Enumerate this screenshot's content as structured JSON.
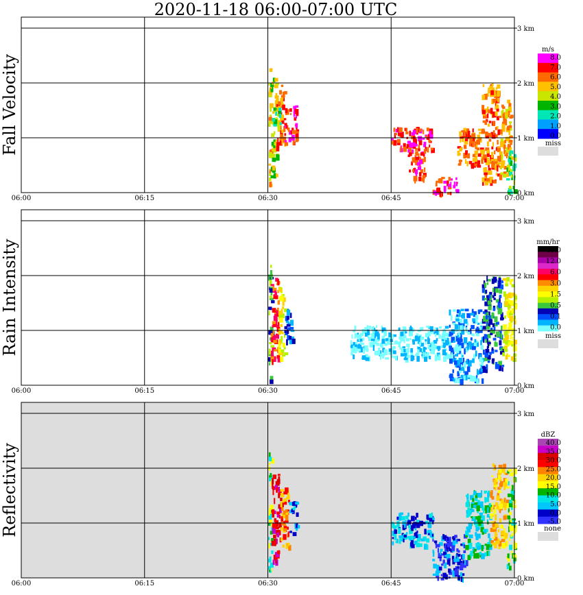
{
  "title": "2020-11-18   06:00-07:00 UTC",
  "time_ticks": [
    "06:00",
    "06:15",
    "06:30",
    "06:45",
    "07:00"
  ],
  "height_ticks": [
    "0 km",
    "1 km",
    "2 km",
    "3 km"
  ],
  "colors": {
    "missing": "#dddddd",
    "background": "#ffffff",
    "grid": "#000000"
  },
  "chart_data": [
    {
      "type": "heatmap",
      "title": "",
      "ylabel": "Fall Velocity",
      "xlabel": "",
      "x_range": [
        "06:00",
        "07:00"
      ],
      "y_range_km": [
        0,
        3.2
      ],
      "colorbar": {
        "unit": "m/s",
        "labels": [
          "8.0",
          "7.0",
          "6.0",
          "5.0",
          "4.0",
          "3.0",
          "2.0",
          "1.0",
          "0.0"
        ],
        "colors": [
          "#ff00ff",
          "#ff0000",
          "#ff6a00",
          "#ffc000",
          "#c8e600",
          "#00b400",
          "#00e6b4",
          "#00a0ff",
          "#0000ff"
        ],
        "missing_label": "miss"
      },
      "echoes": [
        {
          "t": [
            30.0,
            30.3
          ],
          "z": [
            0.1,
            2.3
          ],
          "v": 3
        },
        {
          "t": [
            30.3,
            31.0
          ],
          "z": [
            0.3,
            2.2
          ],
          "v": 4
        },
        {
          "t": [
            31.0,
            32.0
          ],
          "z": [
            0.8,
            2.0
          ],
          "v": 2
        },
        {
          "t": [
            32.0,
            33.5
          ],
          "z": [
            0.9,
            1.6
          ],
          "v": 1
        },
        {
          "t": [
            30.5,
            31.5
          ],
          "z": [
            1.2,
            1.6
          ],
          "v": 5
        },
        {
          "t": [
            45.0,
            50.0
          ],
          "z": [
            0.8,
            1.2
          ],
          "v": 1
        },
        {
          "t": [
            47.0,
            49.0
          ],
          "z": [
            0.2,
            0.8
          ],
          "v": 1
        },
        {
          "t": [
            50.0,
            53.0
          ],
          "z": [
            0.0,
            0.3
          ],
          "v": 1
        },
        {
          "t": [
            53.0,
            56.0
          ],
          "z": [
            0.5,
            1.2
          ],
          "v": 2
        },
        {
          "t": [
            56.0,
            58.0
          ],
          "z": [
            0.2,
            2.0
          ],
          "v": 2
        },
        {
          "t": [
            58.0,
            59.5
          ],
          "z": [
            0.3,
            1.7
          ],
          "v": 3
        },
        {
          "t": [
            59.0,
            60.0
          ],
          "z": [
            0.0,
            0.8
          ],
          "v": 5
        }
      ]
    },
    {
      "type": "heatmap",
      "title": "",
      "ylabel": "Rain Intensity",
      "xlabel": "",
      "x_range": [
        "06:00",
        "07:00"
      ],
      "y_range_km": [
        0,
        3.2
      ],
      "colorbar": {
        "unit": "mm/hr",
        "labels": [
          "48.0",
          "12.0",
          "6.0",
          "3.0",
          "1.5",
          "0.5",
          "0.1",
          "0.0"
        ],
        "colors": [
          "#000000",
          "#6e0046",
          "#aa00aa",
          "#dc28c8",
          "#ff0064",
          "#ff0000",
          "#ff8c00",
          "#ffd200",
          "#ffff00",
          "#b4f000",
          "#3cc83c",
          "#0000b4",
          "#0050ff",
          "#00b4ff",
          "#78ffff"
        ],
        "missing_label": "miss"
      },
      "echoes": [
        {
          "t": [
            30.0,
            30.4
          ],
          "z": [
            0.1,
            2.2
          ],
          "v": 10
        },
        {
          "t": [
            30.3,
            31.2
          ],
          "z": [
            0.4,
            2.0
          ],
          "v": 5
        },
        {
          "t": [
            31.2,
            32.0
          ],
          "z": [
            0.5,
            1.8
          ],
          "v": 8
        },
        {
          "t": [
            32.0,
            33.0
          ],
          "z": [
            0.8,
            1.4
          ],
          "v": 12
        },
        {
          "t": [
            40.0,
            52.0
          ],
          "z": [
            0.5,
            1.1
          ],
          "v": 14
        },
        {
          "t": [
            52.0,
            56.0
          ],
          "z": [
            0.1,
            1.4
          ],
          "v": 13
        },
        {
          "t": [
            56.0,
            58.5
          ],
          "z": [
            0.3,
            2.0
          ],
          "v": 11
        },
        {
          "t": [
            58.5,
            60.0
          ],
          "z": [
            0.5,
            2.0
          ],
          "v": 8
        }
      ]
    },
    {
      "type": "heatmap",
      "title": "",
      "ylabel": "Reflectivity",
      "xlabel": "",
      "x_range": [
        "06:00",
        "07:00"
      ],
      "y_range_km": [
        0,
        3.2
      ],
      "colorbar": {
        "unit": "dBZ",
        "labels": [
          "40.0",
          "35.0",
          "30.0",
          "25.0",
          "20.0",
          "15.0",
          "10.0",
          "5.0",
          "0.0",
          "-5.0"
        ],
        "colors": [
          "#aa46b4",
          "#c800c8",
          "#dc0000",
          "#ff0000",
          "#ff8200",
          "#ffd200",
          "#ffff00",
          "#00b400",
          "#00e6e6",
          "#00c8ff",
          "#0000c8",
          "#3232ff"
        ],
        "missing_label": "none"
      },
      "echoes": [
        {
          "t": [
            30.0,
            30.4
          ],
          "z": [
            0.1,
            2.3
          ],
          "v": 7
        },
        {
          "t": [
            30.4,
            31.5
          ],
          "z": [
            0.3,
            1.9
          ],
          "v": 2
        },
        {
          "t": [
            31.5,
            32.5
          ],
          "z": [
            0.6,
            1.7
          ],
          "v": 4
        },
        {
          "t": [
            32.5,
            33.5
          ],
          "z": [
            0.8,
            1.4
          ],
          "v": 9
        },
        {
          "t": [
            45.0,
            50.0
          ],
          "z": [
            0.6,
            1.2
          ],
          "v": 9
        },
        {
          "t": [
            50.0,
            54.0
          ],
          "z": [
            0.0,
            0.8
          ],
          "v": 10
        },
        {
          "t": [
            54.0,
            57.0
          ],
          "z": [
            0.4,
            1.6
          ],
          "v": 8
        },
        {
          "t": [
            57.0,
            59.0
          ],
          "z": [
            0.6,
            2.1
          ],
          "v": 5
        },
        {
          "t": [
            59.0,
            60.0
          ],
          "z": [
            0.2,
            2.0
          ],
          "v": 7
        }
      ]
    }
  ]
}
